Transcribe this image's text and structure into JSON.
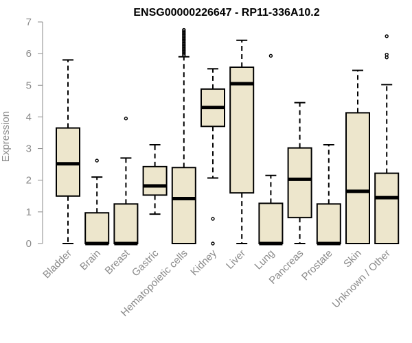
{
  "chart_data": {
    "type": "boxplot",
    "title": "ENSG00000226647 - RP11-336A10.2",
    "xlabel": "",
    "ylabel": "Expression",
    "ylim": [
      0,
      7
    ],
    "yticks": [
      0,
      1,
      2,
      3,
      4,
      5,
      6,
      7
    ],
    "box_fill": "#ede6cc",
    "box_stroke": "#000000",
    "categories": [
      "Bladder",
      "Brain",
      "Breast",
      "Gastric",
      "Hematopoietic cells",
      "Kidney",
      "Liver",
      "Lung",
      "Pancreas",
      "Prostate",
      "Skin",
      "Unknown / Other"
    ],
    "series": [
      {
        "name": "Bladder",
        "whisker_low": 0,
        "q1": 1.5,
        "median": 2.52,
        "q3": 3.65,
        "whisker_high": 5.8,
        "outliers": []
      },
      {
        "name": "Brain",
        "whisker_low": 0,
        "q1": 0,
        "median": 0,
        "q3": 0.97,
        "whisker_high": 2.1,
        "outliers": [
          2.62
        ]
      },
      {
        "name": "Breast",
        "whisker_low": 0,
        "q1": 0,
        "median": 0,
        "q3": 1.25,
        "whisker_high": 2.7,
        "outliers": [
          3.95
        ]
      },
      {
        "name": "Gastric",
        "whisker_low": 0.93,
        "q1": 1.53,
        "median": 1.82,
        "q3": 2.43,
        "whisker_high": 3.12,
        "outliers": []
      },
      {
        "name": "Hematopoietic cells",
        "whisker_low": 0,
        "q1": 0,
        "median": 1.42,
        "q3": 2.4,
        "whisker_high": 5.9,
        "outliers": [
          5.95,
          6.0,
          6.05,
          6.1,
          6.15,
          6.2,
          6.25,
          6.3,
          6.35,
          6.4,
          6.45,
          6.5,
          6.55,
          6.6,
          6.65,
          6.7,
          6.75
        ]
      },
      {
        "name": "Kidney",
        "whisker_low": 2.07,
        "q1": 3.7,
        "median": 4.3,
        "q3": 4.88,
        "whisker_high": 5.52,
        "outliers": [
          0.78,
          0
        ]
      },
      {
        "name": "Liver",
        "whisker_low": 0,
        "q1": 1.6,
        "median": 5.05,
        "q3": 5.57,
        "whisker_high": 6.42,
        "outliers": []
      },
      {
        "name": "Lung",
        "whisker_low": 0,
        "q1": 0,
        "median": 0,
        "q3": 1.27,
        "whisker_high": 2.15,
        "outliers": [
          5.93
        ]
      },
      {
        "name": "Pancreas",
        "whisker_low": 0,
        "q1": 0.82,
        "median": 2.03,
        "q3": 3.02,
        "whisker_high": 4.45,
        "outliers": []
      },
      {
        "name": "Prostate",
        "whisker_low": 0,
        "q1": 0,
        "median": 0,
        "q3": 1.25,
        "whisker_high": 3.12,
        "outliers": []
      },
      {
        "name": "Skin",
        "whisker_low": 0,
        "q1": 0,
        "median": 1.65,
        "q3": 4.13,
        "whisker_high": 5.47,
        "outliers": []
      },
      {
        "name": "Unknown / Other",
        "whisker_low": 0,
        "q1": 0,
        "median": 1.45,
        "q3": 2.22,
        "whisker_high": 5.02,
        "outliers": [
          5.88,
          5.97,
          6.55
        ]
      }
    ]
  }
}
